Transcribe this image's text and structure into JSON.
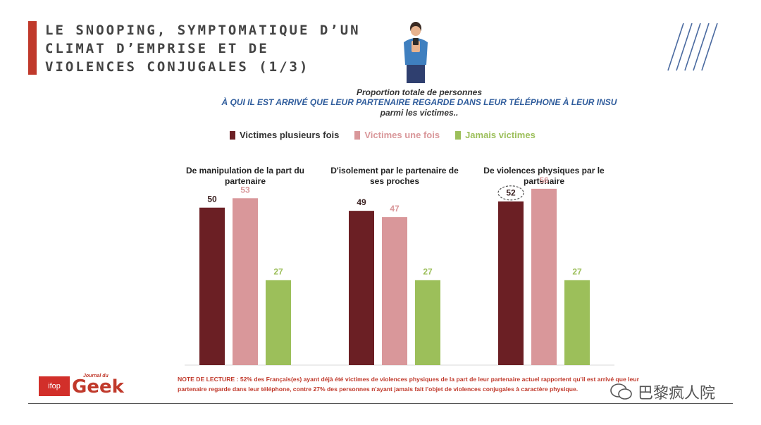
{
  "header": {
    "title": "LE SNOOPING, SYMPTOMATIQUE D’UN CLIMAT D’EMPRISE ET DE VIOLENCES CONJUGALES (1/3)"
  },
  "subtitle": {
    "line1": "Proportion totale de personnes",
    "line2": "À QUI IL EST ARRIVÉ QUE LEUR PARTENAIRE REGARDE DANS LEUR TÉLÉPHONE À LEUR INSU",
    "line3": "parmi les victimes.."
  },
  "colors": {
    "accent": "#c0392b",
    "series1": "#6b1f24",
    "series2": "#d9979a",
    "series3": "#9cbf5a"
  },
  "chart_data": {
    "type": "bar",
    "categories": [
      "De manipulation de la part du partenaire",
      "D'isolement par le partenaire de ses proches",
      "De violences physiques par le partenaire"
    ],
    "series": [
      {
        "name": "Victimes plusieurs fois",
        "values": [
          50,
          49,
          52
        ],
        "color": "#6b1f24"
      },
      {
        "name": "Victimes une fois",
        "values": [
          53,
          47,
          56
        ],
        "color": "#d9979a"
      },
      {
        "name": "Jamais victimes",
        "values": [
          27,
          27,
          27
        ],
        "color": "#9cbf5a"
      }
    ],
    "ylim": [
      0,
      60
    ],
    "highlight": {
      "series": 0,
      "category": 2
    },
    "legend": "top"
  },
  "note": {
    "label": "NOTE DE LECTURE :",
    "text": "52% des Français(es) ayant déjà été victimes de violences physiques de la part de leur partenaire actuel rapportent qu'il est arrivé que leur partenaire regarde dans leur téléphone, contre 27% des personnes n'ayant jamais fait l'objet de violences conjugales à caractère physique."
  },
  "footer": {
    "logo_left": "ifop",
    "logo_small": "Journal du",
    "logo_big": "Geek",
    "watermark": "巴黎疯人院"
  }
}
